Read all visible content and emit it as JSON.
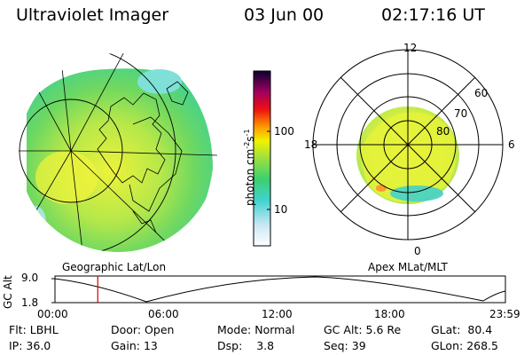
{
  "header": {
    "instrument": "Ultraviolet Imager",
    "date": "03 Jun 00",
    "time": "02:17:16 UT"
  },
  "colorbar": {
    "unit_label": "photon cm",
    "unit_exp1": "-2",
    "unit_s": "s",
    "unit_exp2": "-1",
    "tick_high": "100",
    "tick_low": "10"
  },
  "polar_plot": {
    "mlt_top": "12",
    "mlt_left": "18",
    "mlt_right": "6",
    "mlt_bottom": "0",
    "lat_60": "60",
    "lat_70": "70",
    "lat_80": "80"
  },
  "captions": {
    "left": "Geographic Lat/Lon",
    "right": "Apex MLat/MLT"
  },
  "altitude_plot": {
    "ylabel": "GC Alt",
    "y_high": "9.0",
    "y_low": "1.8",
    "x_ticks": [
      "00:00",
      "06:00",
      "12:00",
      "18:00",
      "23:59"
    ],
    "current_time_fraction": 0.095
  },
  "status": {
    "filter_label": "Flt:",
    "filter_value": "LBHL",
    "ip_label": "IP:",
    "ip_value": "36.0",
    "door_label": "Door:",
    "door_value": "Open",
    "gain_label": "Gain:",
    "gain_value": "13",
    "mode_label": "Mode:",
    "mode_value": "Normal",
    "dsp_label": "Dsp:",
    "dsp_value": "3.8",
    "gcalt_label": "GC Alt:",
    "gcalt_value": "5.6 Re",
    "seq_label": "Seq:",
    "seq_value": "39",
    "glat_label": "GLat:",
    "glat_value": "80.4",
    "glon_label": "GLon:",
    "glon_value": "268.5"
  },
  "colors": {
    "border": "#000000",
    "marker": "#d00000"
  }
}
